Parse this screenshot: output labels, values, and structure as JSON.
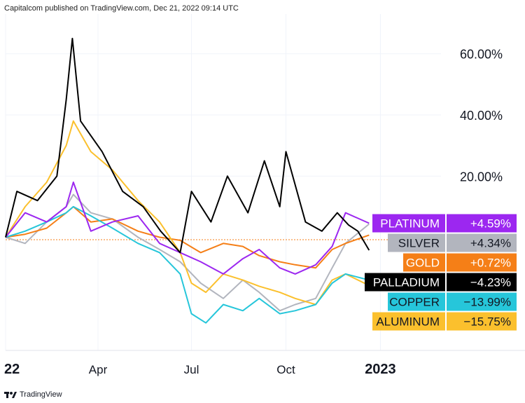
{
  "header": {
    "published_text": "Capitalcom published on TradingView.com, Dec 21, 2022 09:14 UTC"
  },
  "footer": {
    "brand": "TradingView",
    "logo_icon": "tradingview-logo-icon"
  },
  "chart_data": {
    "type": "line",
    "x_labels": [
      "22",
      "Apr",
      "Jul",
      "Oct",
      "2023"
    ],
    "x_label_dates": [
      "2022-01-01",
      "2022-04-01",
      "2022-07-01",
      "2022-10-01",
      "2023-01-01"
    ],
    "y_ticks": [
      "60.00%",
      "40.00%",
      "20.00%"
    ],
    "y_tick_values": [
      60,
      40,
      20
    ],
    "ylim": [
      -37,
      73
    ],
    "xlim": [
      "2022-01-01",
      "2023-03-01"
    ],
    "grid": true,
    "series": [
      {
        "name": "PLATINUM",
        "change": "+4.59%",
        "color": "#9c27f0",
        "label_text_color": "#ffffff",
        "last": 4.59,
        "x": [
          "2022-01-01",
          "2022-01-20",
          "2022-02-10",
          "2022-03-01",
          "2022-03-08",
          "2022-03-25",
          "2022-04-15",
          "2022-05-10",
          "2022-05-31",
          "2022-06-20",
          "2022-07-10",
          "2022-08-01",
          "2022-08-20",
          "2022-09-05",
          "2022-09-25",
          "2022-10-10",
          "2022-10-30",
          "2022-11-15",
          "2022-11-28",
          "2022-12-21"
        ],
        "y": [
          0,
          8,
          5,
          10,
          18,
          2,
          5,
          7,
          -2,
          -5,
          -8,
          -12,
          -7,
          -4,
          -10,
          -12,
          -9,
          -3,
          8,
          4.59
        ]
      },
      {
        "name": "SILVER",
        "change": "+4.34%",
        "color": "#b2b5be",
        "label_text_color": "#131722",
        "last": 4.34,
        "x": [
          "2022-01-01",
          "2022-01-20",
          "2022-02-10",
          "2022-03-01",
          "2022-03-08",
          "2022-03-25",
          "2022-04-15",
          "2022-05-10",
          "2022-05-31",
          "2022-06-20",
          "2022-07-10",
          "2022-08-01",
          "2022-08-20",
          "2022-09-05",
          "2022-09-25",
          "2022-10-10",
          "2022-10-30",
          "2022-11-15",
          "2022-11-28",
          "2022-12-21"
        ],
        "y": [
          0,
          -2,
          5,
          10,
          14,
          8,
          6,
          0,
          -4,
          -8,
          -15,
          -20,
          -14,
          -18,
          -24,
          -22,
          -20,
          -10,
          -2,
          4.34
        ]
      },
      {
        "name": "GOLD",
        "change": "+0.72%",
        "color": "#f57f17",
        "label_text_color": "#ffffff",
        "last": 0.72,
        "x": [
          "2022-01-01",
          "2022-01-20",
          "2022-02-10",
          "2022-03-01",
          "2022-03-08",
          "2022-03-25",
          "2022-04-15",
          "2022-05-10",
          "2022-05-31",
          "2022-06-20",
          "2022-07-10",
          "2022-08-01",
          "2022-08-20",
          "2022-09-05",
          "2022-09-25",
          "2022-10-10",
          "2022-10-30",
          "2022-11-15",
          "2022-11-28",
          "2022-12-21"
        ],
        "y": [
          0,
          1,
          3,
          8,
          10,
          5,
          6,
          2,
          0,
          -1,
          -5,
          -2,
          -3,
          -6,
          -8,
          -9,
          -10,
          -4,
          -2,
          0.72
        ]
      },
      {
        "name": "PALLADIUM",
        "change": "−4.23%",
        "color": "#000000",
        "label_text_color": "#ffffff",
        "last": -4.23,
        "x": [
          "2022-01-01",
          "2022-01-12",
          "2022-02-01",
          "2022-02-20",
          "2022-03-01",
          "2022-03-07",
          "2022-03-15",
          "2022-04-05",
          "2022-04-25",
          "2022-05-15",
          "2022-06-01",
          "2022-06-20",
          "2022-07-01",
          "2022-07-20",
          "2022-08-05",
          "2022-08-25",
          "2022-09-10",
          "2022-09-25",
          "2022-10-01",
          "2022-10-20",
          "2022-11-05",
          "2022-11-20",
          "2022-12-01",
          "2022-12-10",
          "2022-12-21"
        ],
        "y": [
          0,
          15,
          12,
          20,
          45,
          65,
          38,
          28,
          15,
          10,
          2,
          -5,
          15,
          5,
          20,
          8,
          25,
          10,
          28,
          5,
          2,
          8,
          4,
          2,
          -4.23
        ]
      },
      {
        "name": "COPPER",
        "change": "−13.99%",
        "color": "#26c6da",
        "label_text_color": "#131722",
        "last": -13.99,
        "x": [
          "2022-01-01",
          "2022-01-20",
          "2022-02-10",
          "2022-03-01",
          "2022-03-08",
          "2022-03-25",
          "2022-04-15",
          "2022-05-10",
          "2022-05-31",
          "2022-06-20",
          "2022-07-01",
          "2022-07-15",
          "2022-08-01",
          "2022-08-20",
          "2022-09-05",
          "2022-09-25",
          "2022-10-10",
          "2022-10-30",
          "2022-11-15",
          "2022-11-28",
          "2022-12-21"
        ],
        "y": [
          0,
          2,
          5,
          8,
          10,
          7,
          3,
          -2,
          -5,
          -12,
          -25,
          -28,
          -22,
          -24,
          -20,
          -25,
          -24,
          -22,
          -15,
          -12,
          -13.99
        ]
      },
      {
        "name": "ALUMINUM",
        "change": "−15.75%",
        "color": "#fbc02d",
        "label_text_color": "#131722",
        "last": -15.75,
        "x": [
          "2022-01-01",
          "2022-01-20",
          "2022-02-10",
          "2022-03-01",
          "2022-03-08",
          "2022-03-25",
          "2022-04-15",
          "2022-05-10",
          "2022-05-31",
          "2022-06-20",
          "2022-07-01",
          "2022-07-15",
          "2022-08-01",
          "2022-08-20",
          "2022-09-05",
          "2022-09-25",
          "2022-10-10",
          "2022-10-30",
          "2022-11-15",
          "2022-11-28",
          "2022-12-21"
        ],
        "y": [
          0,
          10,
          18,
          30,
          38,
          28,
          22,
          12,
          5,
          -5,
          -15,
          -18,
          -12,
          -14,
          -16,
          -18,
          -20,
          -22,
          -14,
          -12,
          -15.75
        ]
      }
    ]
  }
}
